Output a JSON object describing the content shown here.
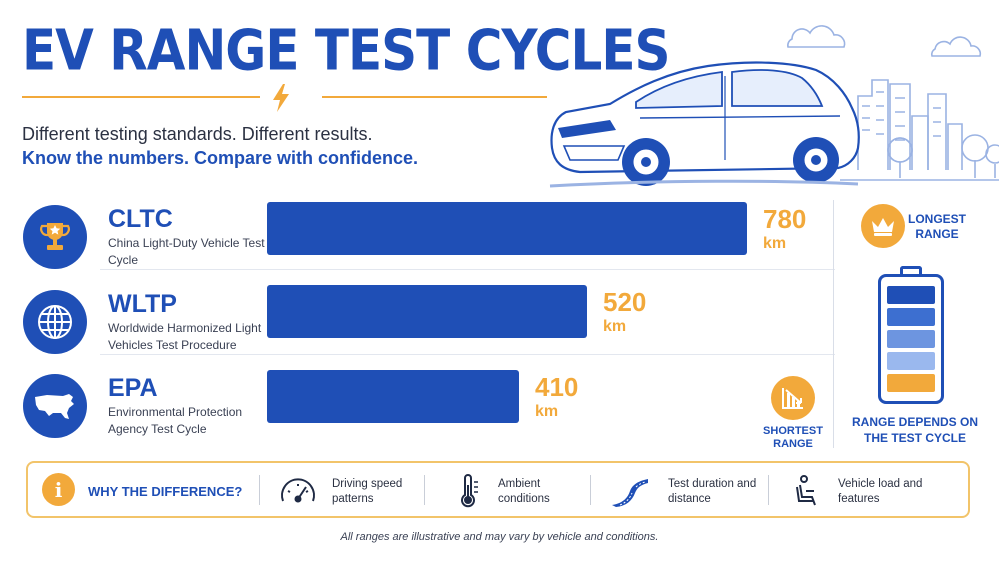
{
  "header": {
    "title": "EV RANGE TEST CYCLES",
    "subtitle_line1": "Different testing standards. Different results.",
    "subtitle_line2": "Know the numbers. Compare with confidence."
  },
  "chart_data": {
    "type": "bar",
    "orientation": "horizontal",
    "categories": [
      "CLTC",
      "WLTP",
      "EPA"
    ],
    "descriptions": [
      "China Light-Duty Vehicle Test Cycle",
      "Worldwide Harmonized Light Vehicles Test Procedure",
      "Environmental Protection Agency Test Cycle"
    ],
    "values": [
      780,
      520,
      410
    ],
    "unit": "km",
    "icons": [
      "trophy-icon",
      "globe-icon",
      "us-map-icon"
    ],
    "bar_color": "#1f4fb6",
    "value_color": "#f2a93b",
    "grid": false,
    "xlim": [
      0,
      780
    ]
  },
  "sidebar": {
    "longest_label": "LONGEST RANGE",
    "shortest_label": "SHORTEST RANGE",
    "range_depends_label": "RANGE DEPENDS ON THE TEST CYCLE",
    "battery_cell_colors": [
      "#1f4fb6",
      "#3d6fd0",
      "#6d95e0",
      "#9ab8ee",
      "#f2a93b"
    ]
  },
  "info": {
    "title": "WHY THE DIFFERENCE?",
    "factors": [
      {
        "icon": "speedometer-icon",
        "label": "Driving speed patterns"
      },
      {
        "icon": "thermometer-icon",
        "label": "Ambient conditions"
      },
      {
        "icon": "road-icon",
        "label": "Test duration and distance"
      },
      {
        "icon": "seat-icon",
        "label": "Vehicle load and features"
      }
    ]
  },
  "footnote": "All ranges are illustrative and may vary by vehicle and conditions.",
  "colors": {
    "primary_blue": "#1f4fb6",
    "accent_orange": "#f2a93b"
  }
}
